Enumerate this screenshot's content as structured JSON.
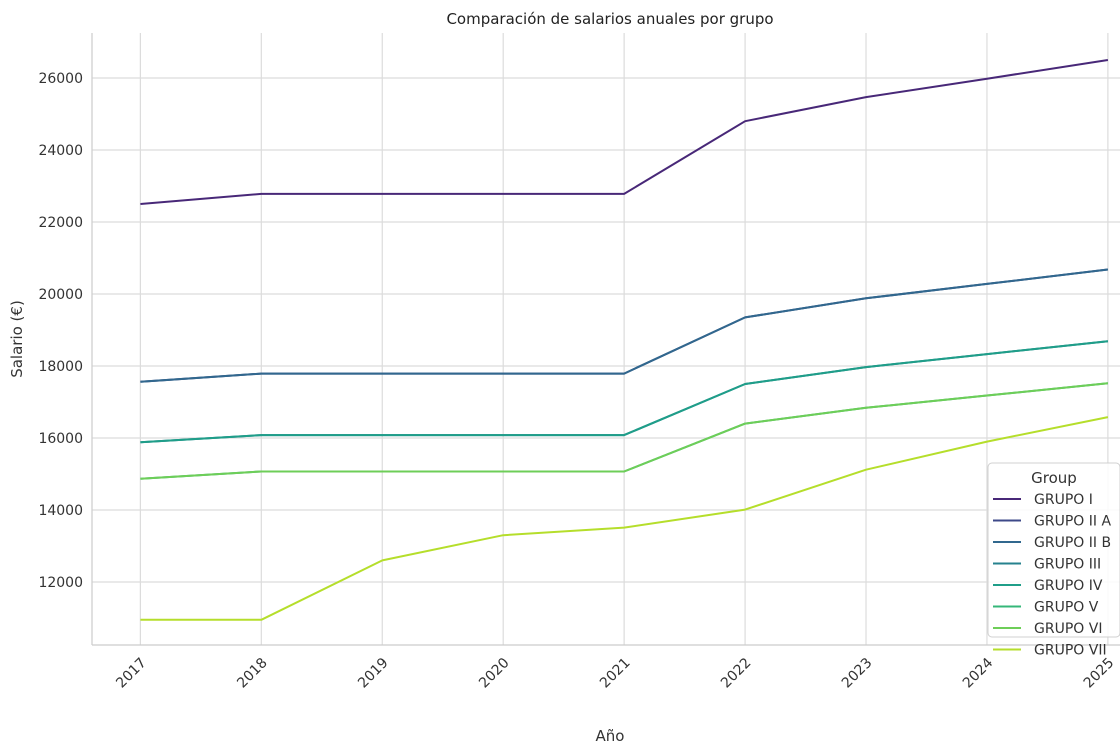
{
  "chart_data": {
    "type": "line",
    "title": "Comparación de salarios anuales por grupo",
    "xlabel": "Año",
    "ylabel": "Salario (€)",
    "x": [
      2017,
      2018,
      2019,
      2020,
      2021,
      2022,
      2023,
      2024,
      2025
    ],
    "x_tick_labels": [
      "2017",
      "2018",
      "2019",
      "2020",
      "2021",
      "2022",
      "2023",
      "2024",
      "2025"
    ],
    "y_ticks": [
      12000,
      14000,
      16000,
      18000,
      20000,
      22000,
      24000,
      26000
    ],
    "y_tick_labels": [
      "12000",
      "14000",
      "16000",
      "18000",
      "20000",
      "22000",
      "24000",
      "26000"
    ],
    "xlim": [
      2016.6,
      2025.1
    ],
    "ylim": [
      10250,
      27250
    ],
    "grid": true,
    "legend": {
      "title": "Group",
      "placement": "lower-right"
    },
    "series": [
      {
        "name": "GRUPO I",
        "color": "#482878",
        "values": [
          22500,
          22780,
          22780,
          22780,
          22780,
          24800,
          25470,
          25980,
          26500
        ]
      },
      {
        "name": "GRUPO II A",
        "color": "#3e4989",
        "values": [
          17560,
          17790,
          17790,
          17790,
          17790,
          19350,
          19880,
          20280,
          20680
        ]
      },
      {
        "name": "GRUPO II B",
        "color": "#31688e",
        "values": [
          17560,
          17790,
          17790,
          17790,
          17790,
          19350,
          19880,
          20280,
          20680
        ]
      },
      {
        "name": "GRUPO III",
        "color": "#26828e",
        "values": [
          15880,
          16080,
          16080,
          16080,
          16080,
          17500,
          17970,
          18330,
          18690
        ]
      },
      {
        "name": "GRUPO IV",
        "color": "#1f9e89",
        "values": [
          15880,
          16080,
          16080,
          16080,
          16080,
          17500,
          17970,
          18330,
          18690
        ]
      },
      {
        "name": "GRUPO V",
        "color": "#35b779",
        "values": [
          14870,
          15070,
          15070,
          15070,
          15070,
          16400,
          16840,
          17180,
          17520
        ]
      },
      {
        "name": "GRUPO VI",
        "color": "#6ece58",
        "values": [
          14870,
          15070,
          15070,
          15070,
          15070,
          16400,
          16840,
          17180,
          17520
        ]
      },
      {
        "name": "GRUPO VII",
        "color": "#b5de2b",
        "values": [
          10950,
          10950,
          12600,
          13300,
          13510,
          14010,
          15120,
          15900,
          16580
        ]
      }
    ]
  }
}
